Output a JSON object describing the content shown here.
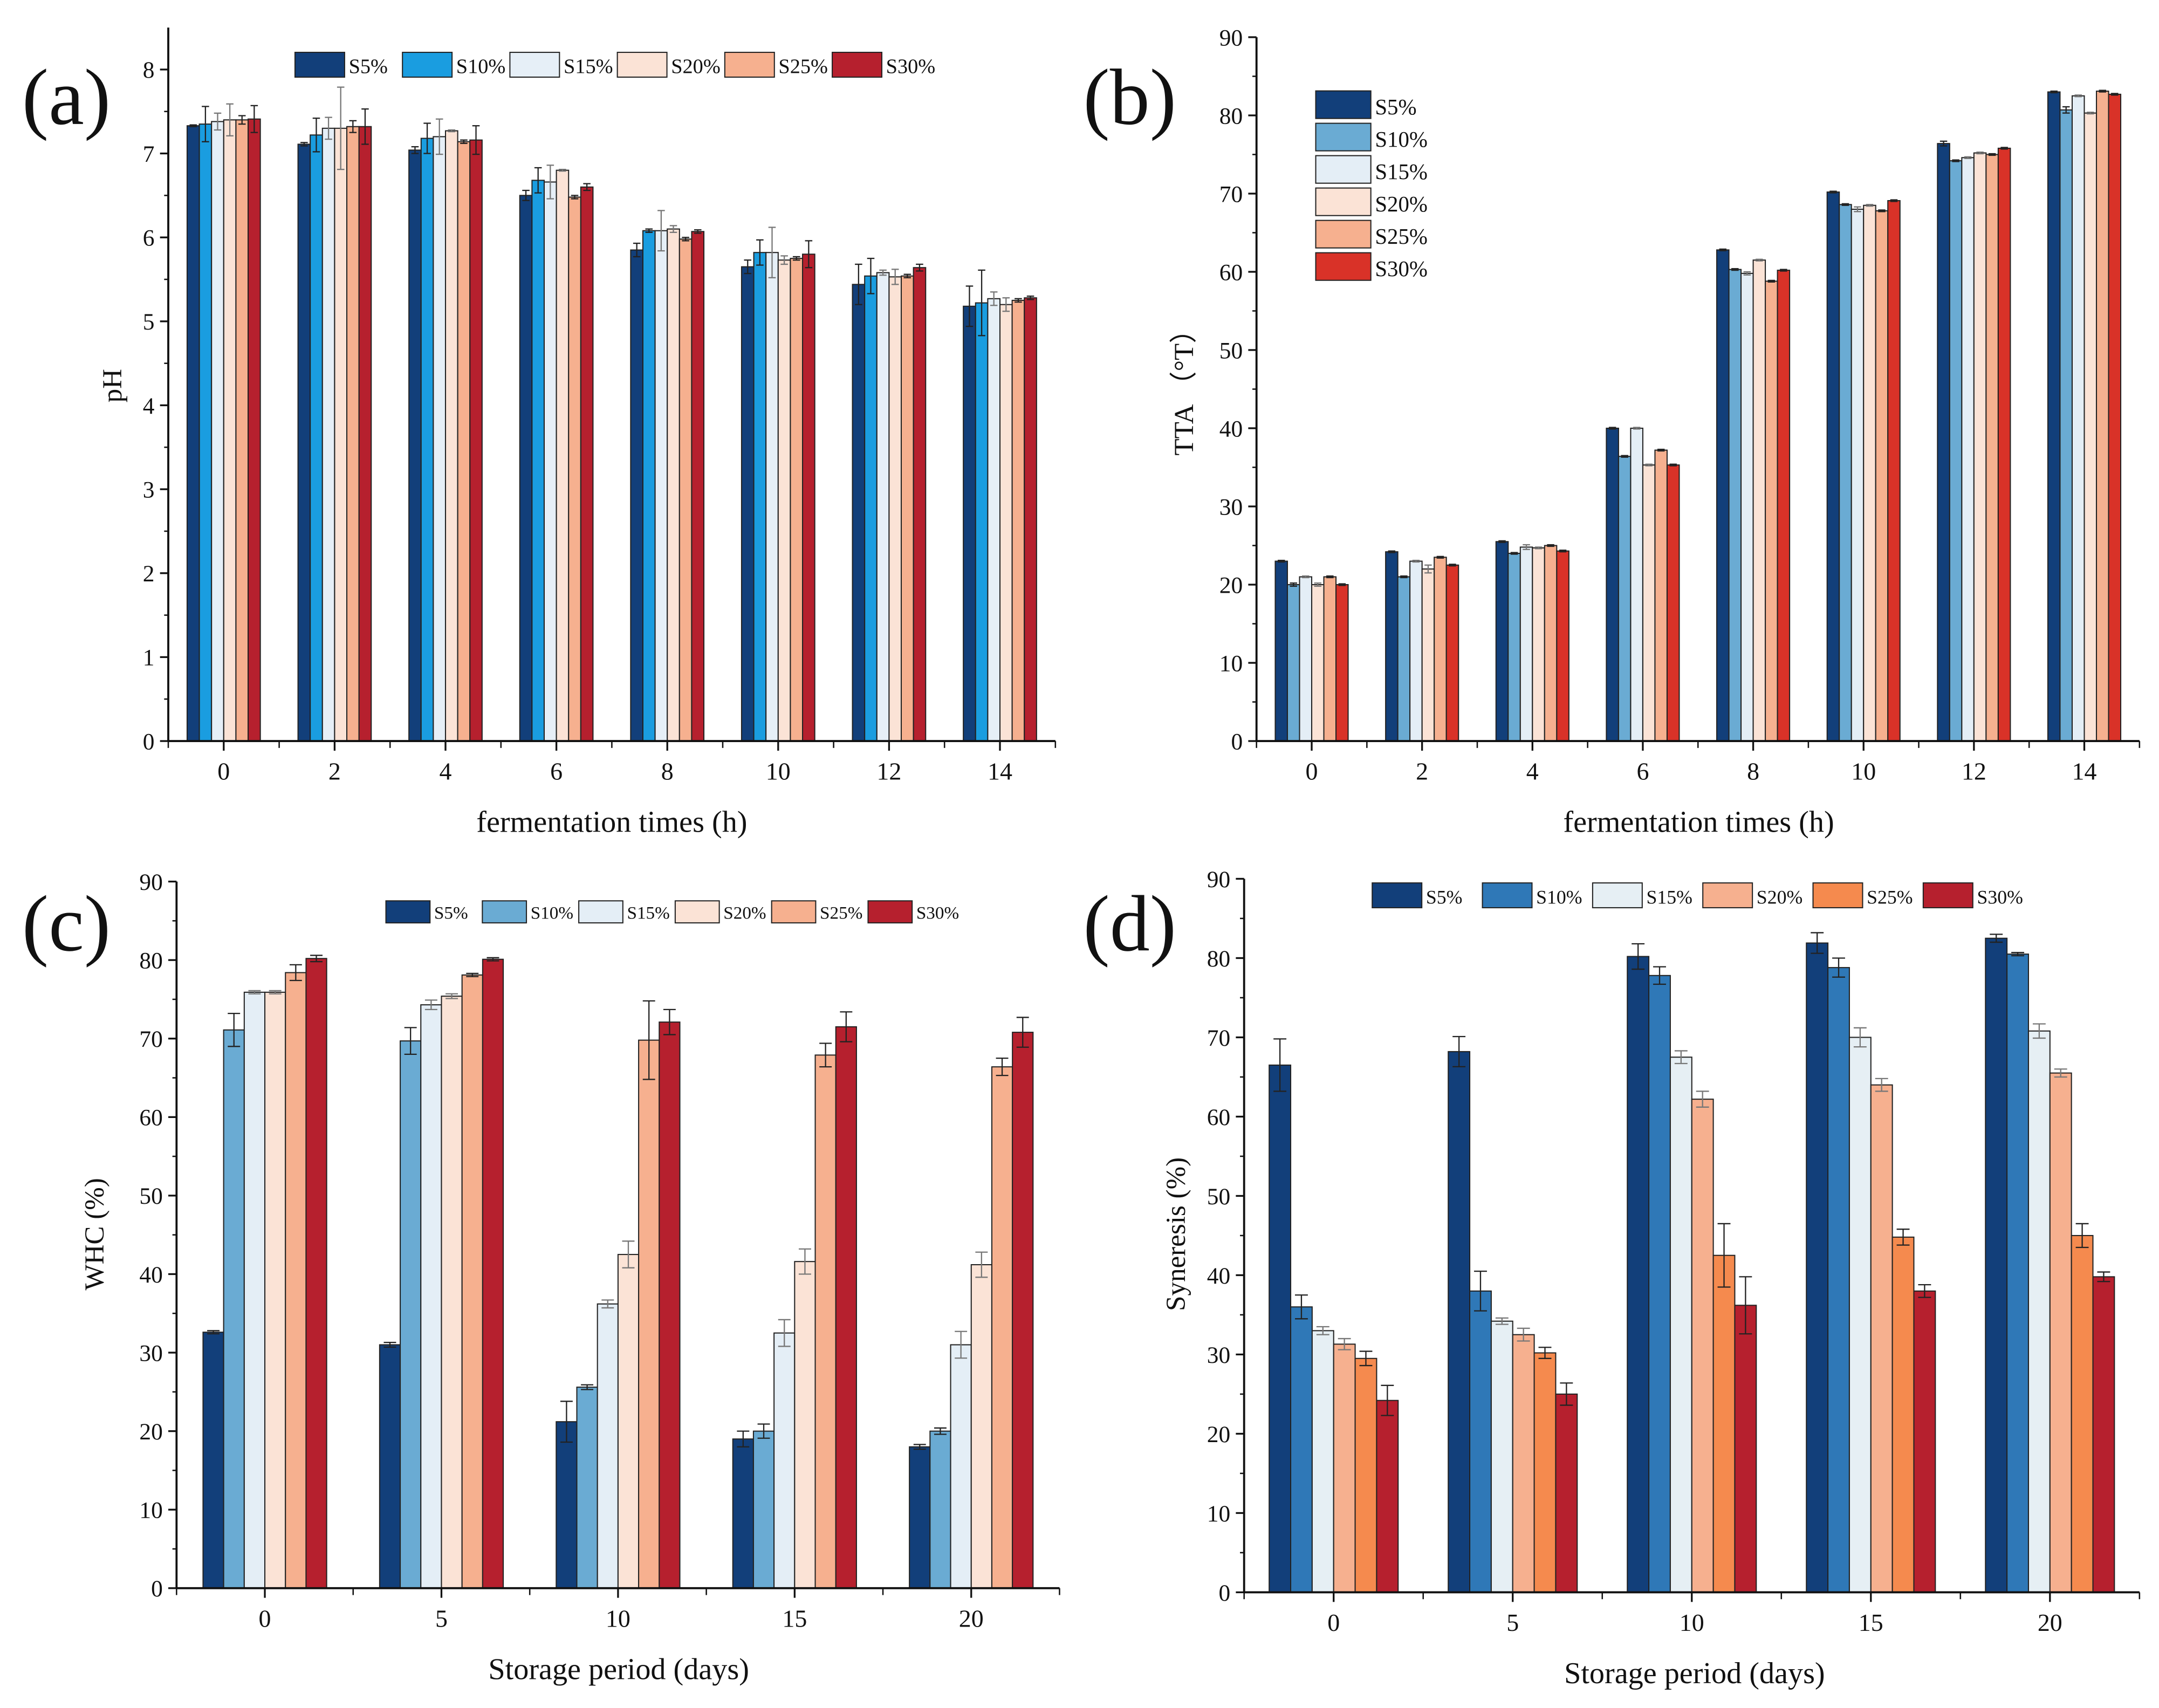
{
  "chart_data": [
    {
      "type": "bar",
      "panel_label": "(a)",
      "xlabel": "fermentation times (h)",
      "ylabel": "pH",
      "ylim": [
        0,
        8.5
      ],
      "yticks": [
        0,
        1,
        2,
        3,
        4,
        5,
        6,
        7,
        8
      ],
      "categories": [
        "0",
        "2",
        "4",
        "6",
        "8",
        "10",
        "12",
        "14"
      ],
      "legend_placement": "top-horizontal",
      "series": [
        {
          "name": "S5%",
          "color": "#123f7a",
          "values": [
            7.33,
            7.11,
            7.04,
            6.5,
            5.85,
            5.65,
            5.44,
            5.18
          ],
          "errors": [
            0.01,
            0.02,
            0.04,
            0.06,
            0.08,
            0.08,
            0.24,
            0.24
          ]
        },
        {
          "name": "S10%",
          "color": "#1a9de0",
          "values": [
            7.35,
            7.22,
            7.18,
            6.68,
            6.08,
            5.82,
            5.54,
            5.22
          ],
          "errors": [
            0.21,
            0.2,
            0.18,
            0.15,
            0.02,
            0.15,
            0.21,
            0.39
          ]
        },
        {
          "name": "S15%",
          "color": "#e6eff7",
          "values": [
            7.38,
            7.3,
            7.2,
            6.66,
            6.08,
            5.82,
            5.58,
            5.27
          ],
          "errors": [
            0.1,
            0.13,
            0.21,
            0.2,
            0.24,
            0.3,
            0.03,
            0.08
          ]
        },
        {
          "name": "S20%",
          "color": "#fbe3d6",
          "values": [
            7.4,
            7.3,
            7.27,
            6.8,
            6.1,
            5.73,
            5.53,
            5.2
          ],
          "errors": [
            0.19,
            0.49,
            0.01,
            0.01,
            0.04,
            0.05,
            0.09,
            0.08
          ]
        },
        {
          "name": "S25%",
          "color": "#f6b08f",
          "values": [
            7.4,
            7.32,
            7.14,
            6.48,
            5.98,
            5.75,
            5.54,
            5.25
          ],
          "errors": [
            0.05,
            0.07,
            0.02,
            0.02,
            0.02,
            0.02,
            0.02,
            0.02
          ]
        },
        {
          "name": "S30%",
          "color": "#b6202e",
          "values": [
            7.41,
            7.32,
            7.16,
            6.6,
            6.07,
            5.8,
            5.64,
            5.28
          ],
          "errors": [
            0.16,
            0.21,
            0.17,
            0.04,
            0.02,
            0.16,
            0.04,
            0.02
          ]
        }
      ]
    },
    {
      "type": "bar",
      "panel_label": "(b)",
      "xlabel": "fermentation times (h)",
      "ylabel": "TTA （°T）",
      "ylim": [
        0,
        90
      ],
      "yticks": [
        0,
        10,
        20,
        30,
        40,
        50,
        60,
        70,
        80,
        90
      ],
      "categories": [
        "0",
        "2",
        "4",
        "6",
        "8",
        "10",
        "12",
        "14"
      ],
      "legend_placement": "top-left-vertical",
      "series": [
        {
          "name": "S5%",
          "color": "#123f7a",
          "values": [
            23,
            24.2,
            25.5,
            40,
            62.8,
            70.2,
            76.4,
            83
          ],
          "errors": [
            0.1,
            0.1,
            0.1,
            0.1,
            0.1,
            0.1,
            0.3,
            0.1
          ]
        },
        {
          "name": "S10%",
          "color": "#6aabd3",
          "values": [
            20,
            21,
            24,
            36.4,
            60.3,
            68.6,
            74.2,
            80.7
          ],
          "errors": [
            0.2,
            0.1,
            0.1,
            0.1,
            0.1,
            0.1,
            0.1,
            0.4
          ]
        },
        {
          "name": "S15%",
          "color": "#e4eef6",
          "values": [
            21,
            23,
            24.8,
            40,
            59.8,
            68,
            74.6,
            82.5
          ],
          "errors": [
            0.1,
            0.1,
            0.3,
            0.1,
            0.2,
            0.3,
            0.1,
            0.1
          ]
        },
        {
          "name": "S20%",
          "color": "#fbe3d6",
          "values": [
            20,
            22,
            24.7,
            35.3,
            61.5,
            68.5,
            75.2,
            80.3
          ],
          "errors": [
            0.2,
            0.5,
            0.1,
            0.1,
            0.1,
            0.1,
            0.1,
            0.1
          ]
        },
        {
          "name": "S25%",
          "color": "#f6b08f",
          "values": [
            21,
            23.5,
            25,
            37.2,
            58.8,
            67.8,
            75,
            83.1
          ],
          "errors": [
            0.1,
            0.1,
            0.1,
            0.1,
            0.1,
            0.1,
            0.1,
            0.1
          ]
        },
        {
          "name": "S30%",
          "color": "#d93228",
          "values": [
            20,
            22.5,
            24.3,
            35.3,
            60.2,
            69.1,
            75.8,
            82.7
          ],
          "errors": [
            0.1,
            0.1,
            0.1,
            0.1,
            0.1,
            0.1,
            0.1,
            0.1
          ]
        }
      ]
    },
    {
      "type": "bar",
      "panel_label": "(c)",
      "xlabel": "Storage period (days)",
      "ylabel": "WHC (%)",
      "ylim": [
        0,
        90
      ],
      "yticks": [
        0,
        10,
        20,
        30,
        40,
        50,
        60,
        70,
        80,
        90
      ],
      "categories": [
        "0",
        "5",
        "10",
        "15",
        "20"
      ],
      "legend_placement": "top-horizontal",
      "series": [
        {
          "name": "S5%",
          "color": "#123f7a",
          "values": [
            32.6,
            31,
            21.2,
            19,
            18
          ],
          "errors": [
            0.2,
            0.3,
            2.6,
            1.0,
            0.3
          ]
        },
        {
          "name": "S10%",
          "color": "#6aabd3",
          "values": [
            71.1,
            69.7,
            25.6,
            20,
            20
          ],
          "errors": [
            2.1,
            1.7,
            0.3,
            0.9,
            0.4
          ]
        },
        {
          "name": "S15%",
          "color": "#e4eef6",
          "values": [
            75.9,
            74.3,
            36.2,
            32.5,
            31
          ],
          "errors": [
            0.2,
            0.6,
            0.5,
            1.7,
            1.7
          ]
        },
        {
          "name": "S20%",
          "color": "#fbe3d6",
          "values": [
            75.9,
            75.4,
            42.5,
            41.6,
            41.2
          ],
          "errors": [
            0.2,
            0.3,
            1.7,
            1.6,
            1.6
          ]
        },
        {
          "name": "S25%",
          "color": "#f6b08f",
          "values": [
            78.4,
            78.1,
            69.8,
            67.9,
            66.4
          ],
          "errors": [
            1.0,
            0.2,
            5.0,
            1.5,
            1.1
          ]
        },
        {
          "name": "S30%",
          "color": "#b6202e",
          "values": [
            80.2,
            80.1,
            72.1,
            71.5,
            70.8
          ],
          "errors": [
            0.4,
            0.2,
            1.6,
            1.9,
            1.9
          ]
        }
      ]
    },
    {
      "type": "bar",
      "panel_label": "(d)",
      "xlabel": "Storage period (days)",
      "ylabel": "Syneresis (%)",
      "ylim": [
        0,
        90
      ],
      "yticks": [
        0,
        10,
        20,
        30,
        40,
        50,
        60,
        70,
        80,
        90
      ],
      "categories": [
        "0",
        "5",
        "10",
        "15",
        "20"
      ],
      "legend_placement": "top-horizontal",
      "series": [
        {
          "name": "S5%",
          "color": "#123f7a",
          "values": [
            66.5,
            68.2,
            80.2,
            81.9,
            82.5
          ],
          "errors": [
            3.3,
            1.9,
            1.6,
            1.3,
            0.5
          ]
        },
        {
          "name": "S10%",
          "color": "#2f78b7",
          "values": [
            36,
            38,
            77.8,
            78.8,
            80.5
          ],
          "errors": [
            1.5,
            2.5,
            1.1,
            1.2,
            0.2
          ]
        },
        {
          "name": "S15%",
          "color": "#e6eff4",
          "values": [
            33,
            34.2,
            67.5,
            70,
            70.8
          ],
          "errors": [
            0.5,
            0.4,
            0.8,
            1.2,
            0.9
          ]
        },
        {
          "name": "S20%",
          "color": "#f6b08f",
          "values": [
            31.3,
            32.5,
            62.2,
            64,
            65.5
          ],
          "errors": [
            0.7,
            0.8,
            1.0,
            0.8,
            0.5
          ]
        },
        {
          "name": "S25%",
          "color": "#f58a4e",
          "values": [
            29.5,
            30.2,
            42.5,
            44.8,
            45
          ],
          "errors": [
            0.9,
            0.7,
            4.0,
            1.0,
            1.5
          ]
        },
        {
          "name": "S30%",
          "color": "#b6202e",
          "values": [
            24.2,
            25,
            36.2,
            38,
            39.8
          ],
          "errors": [
            1.9,
            1.4,
            3.6,
            0.8,
            0.6
          ]
        }
      ]
    }
  ]
}
